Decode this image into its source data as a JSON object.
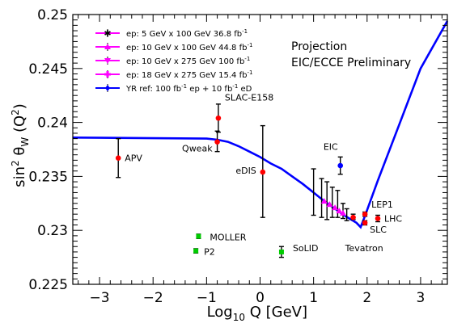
{
  "chart_data": {
    "type": "scatter",
    "title": "",
    "xlabel": "Log10 Q [GeV]",
    "ylabel": "sin2 θW (Q2)",
    "xlim": [
      -3.5,
      3.5
    ],
    "ylim": [
      0.225,
      0.25
    ],
    "grid": false,
    "x_ticks": [
      {
        "v": -3,
        "label": "−3"
      },
      {
        "v": -2,
        "label": "−2"
      },
      {
        "v": -1,
        "label": "−1"
      },
      {
        "v": 0,
        "label": "0"
      },
      {
        "v": 1,
        "label": "1"
      },
      {
        "v": 2,
        "label": "2"
      },
      {
        "v": 3,
        "label": "3"
      }
    ],
    "y_ticks": [
      {
        "v": 0.225,
        "label": "0.225"
      },
      {
        "v": 0.23,
        "label": "0.23"
      },
      {
        "v": 0.235,
        "label": "0.235"
      },
      {
        "v": 0.24,
        "label": "0.24"
      },
      {
        "v": 0.245,
        "label": "0.245"
      },
      {
        "v": 0.25,
        "label": "0.25"
      }
    ],
    "annotation_lines": [
      "Projection",
      "EIC/ECCE Preliminary"
    ],
    "legend_position": "top-left",
    "legend": [
      {
        "label": "ep: 5 GeV x 100 GeV 36.8 fb",
        "sup": "-1",
        "color": "#ff00ff",
        "marker": "star"
      },
      {
        "label": "ep: 10 GeV x 100 GeV 44.8 fb",
        "sup": "-1",
        "color": "#ff00ff",
        "marker": "triangle-up"
      },
      {
        "label": "ep: 10 GeV x 275 GeV 100 fb",
        "sup": "-1",
        "color": "#ff00ff",
        "marker": "triangle-down"
      },
      {
        "label": "ep: 18 GeV x 275 GeV 15.4 fb",
        "sup": "-1",
        "color": "#ff00ff",
        "marker": "cross"
      },
      {
        "label": "YR ref: 100 fb",
        "sup": "-1",
        "label2": " ep + 10 fb",
        "sup2": "-1",
        "label3": " eD",
        "color": "#0000ff",
        "marker": "diamond"
      }
    ],
    "theory_curve": {
      "color": "#0000ff",
      "x": [
        -3.5,
        -1.0,
        -0.8,
        -0.6,
        -0.4,
        -0.2,
        0.0,
        0.2,
        0.4,
        0.6,
        0.8,
        1.0,
        1.2,
        1.4,
        1.6,
        1.8,
        1.88,
        1.95,
        2.2,
        2.6,
        3.0,
        3.5
      ],
      "y": [
        0.2386,
        0.2385,
        0.2384,
        0.2382,
        0.2378,
        0.2373,
        0.2368,
        0.2362,
        0.2357,
        0.235,
        0.2343,
        0.2335,
        0.2327,
        0.232,
        0.2313,
        0.2307,
        0.2303,
        0.2312,
        0.2346,
        0.2398,
        0.245,
        0.2494
      ]
    },
    "measurements": [
      {
        "x": -2.65,
        "y": 0.2367,
        "ylo": 0.2349,
        "yhi": 0.2385,
        "label": "APV"
      },
      {
        "x": -0.8,
        "y": 0.2382,
        "ylo": 0.2373,
        "yhi": 0.2392,
        "label": "Qweak"
      },
      {
        "x": -0.78,
        "y": 0.2404,
        "ylo": 0.2391,
        "yhi": 0.2417,
        "label": "SLAC-E158"
      },
      {
        "x": 0.05,
        "y": 0.2354,
        "ylo": 0.2312,
        "yhi": 0.2397,
        "label": "eDIS"
      },
      {
        "x": 1.74,
        "y": 0.2312,
        "ylo": 0.231,
        "yhi": 0.2315,
        "label": "Tevatron"
      },
      {
        "x": 1.96,
        "y": 0.2315,
        "ylo": 0.2313,
        "yhi": 0.2317,
        "label": "LEP1"
      },
      {
        "x": 1.96,
        "y": 0.2307,
        "ylo": 0.2305,
        "yhi": 0.2309,
        "label": "SLC"
      },
      {
        "x": 2.2,
        "y": 0.2311,
        "ylo": 0.2308,
        "yhi": 0.2314,
        "label": "LHC"
      }
    ],
    "future_points": [
      {
        "x": -1.15,
        "y": 0.22945,
        "ylo": 0.22925,
        "yhi": 0.22965,
        "label": "MOLLER"
      },
      {
        "x": -1.2,
        "y": 0.2281,
        "ylo": 0.2279,
        "yhi": 0.2283,
        "label": "P2"
      },
      {
        "x": 0.4,
        "y": 0.228,
        "ylo": 0.2275,
        "yhi": 0.2285,
        "label": "SoLID"
      }
    ],
    "eic_reference": {
      "x": 1.5,
      "y": 0.236,
      "ylo": 0.2352,
      "yhi": 0.2368,
      "label": "EIC"
    },
    "eic_bars": [
      {
        "x": 1.0,
        "ylo": 0.2314,
        "yhi": 0.2357
      },
      {
        "x": 1.15,
        "ylo": 0.2312,
        "yhi": 0.2348
      },
      {
        "x": 1.25,
        "ylo": 0.231,
        "yhi": 0.2345
      },
      {
        "x": 1.35,
        "ylo": 0.2312,
        "yhi": 0.234
      },
      {
        "x": 1.45,
        "ylo": 0.2312,
        "yhi": 0.2337
      },
      {
        "x": 1.55,
        "ylo": 0.2311,
        "yhi": 0.2325
      },
      {
        "x": 1.62,
        "ylo": 0.2309,
        "yhi": 0.232
      }
    ],
    "eic_points": [
      {
        "x": 1.2,
        "y": 0.2327
      },
      {
        "x": 1.3,
        "y": 0.2324
      },
      {
        "x": 1.4,
        "y": 0.2321
      },
      {
        "x": 1.48,
        "y": 0.2318
      },
      {
        "x": 1.55,
        "y": 0.2316
      }
    ],
    "colors": {
      "measurement": "#ff0000",
      "future": "#00cc00",
      "theory": "#0000ff",
      "eic": "#ff00ff",
      "reference": "#0000ff"
    }
  }
}
